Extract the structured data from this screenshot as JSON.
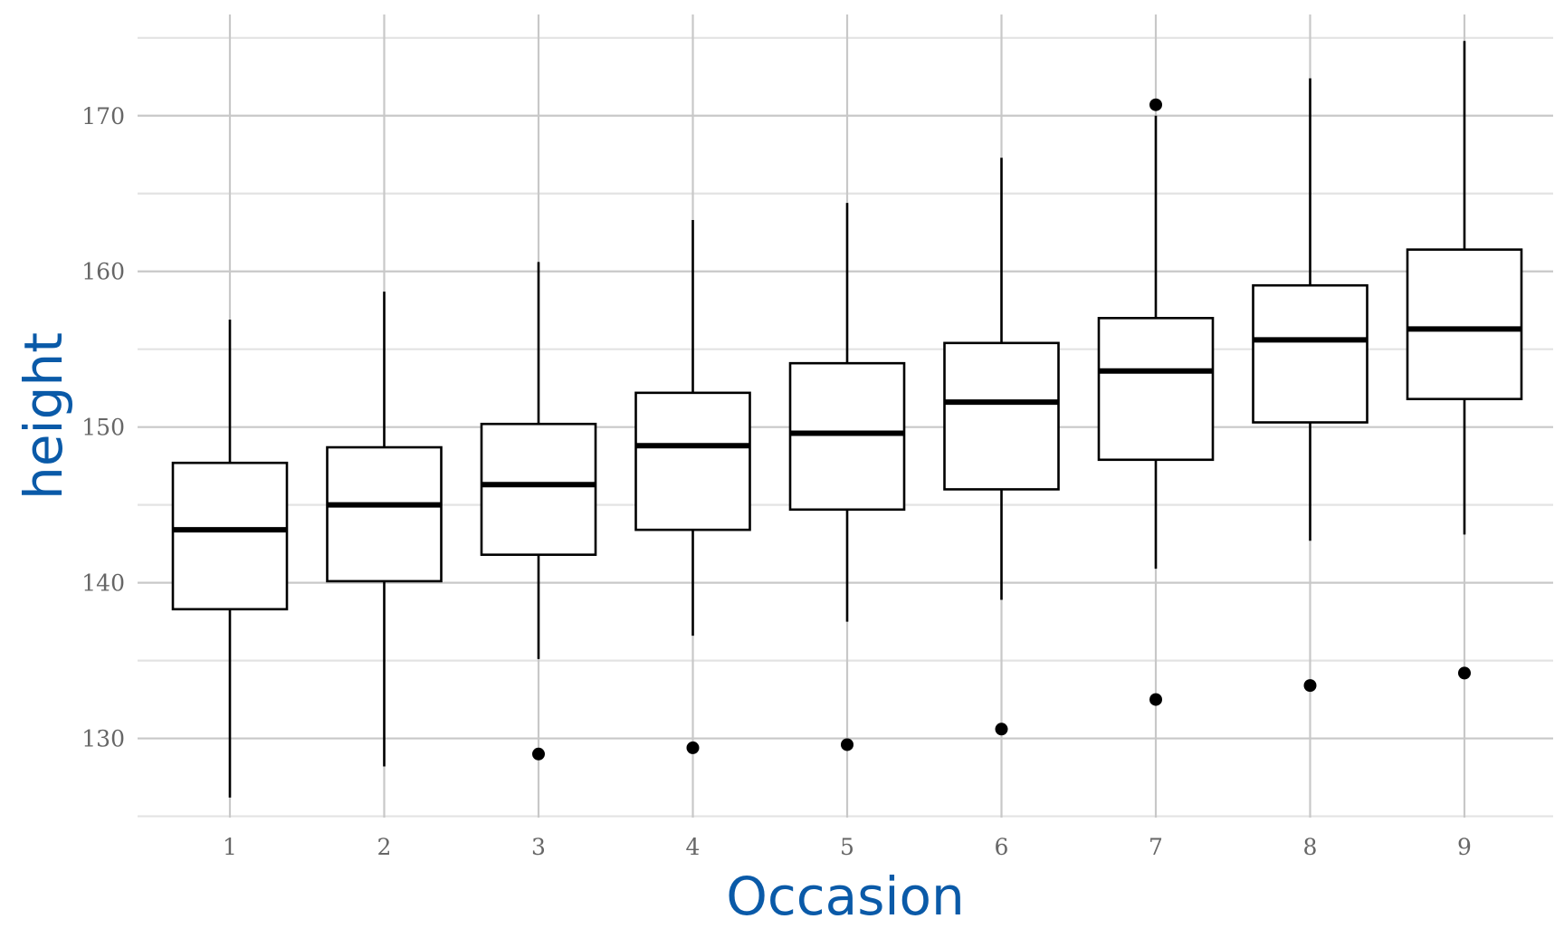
{
  "chart_data": {
    "type": "boxplot",
    "xlabel": "Occasion",
    "ylabel": "height",
    "ylim": [
      124.8,
      176.5
    ],
    "y_ticks": [
      130,
      140,
      150,
      160,
      170
    ],
    "categories": [
      "1",
      "2",
      "3",
      "4",
      "5",
      "6",
      "7",
      "8",
      "9"
    ],
    "boxes": [
      {
        "category": "1",
        "whisker_low": 126.2,
        "q1": 138.3,
        "median": 143.4,
        "q3": 147.7,
        "whisker_high": 156.9,
        "outliers": []
      },
      {
        "category": "2",
        "whisker_low": 128.2,
        "q1": 140.1,
        "median": 145.0,
        "q3": 148.7,
        "whisker_high": 158.7,
        "outliers": []
      },
      {
        "category": "3",
        "whisker_low": 135.1,
        "q1": 141.8,
        "median": 146.3,
        "q3": 150.2,
        "whisker_high": 160.6,
        "outliers": [
          129.0
        ]
      },
      {
        "category": "4",
        "whisker_low": 136.6,
        "q1": 143.4,
        "median": 148.8,
        "q3": 152.2,
        "whisker_high": 163.3,
        "outliers": [
          129.4
        ]
      },
      {
        "category": "5",
        "whisker_low": 137.5,
        "q1": 144.7,
        "median": 149.6,
        "q3": 154.1,
        "whisker_high": 164.4,
        "outliers": [
          129.6
        ]
      },
      {
        "category": "6",
        "whisker_low": 138.9,
        "q1": 146.0,
        "median": 151.6,
        "q3": 155.4,
        "whisker_high": 167.3,
        "outliers": [
          130.6
        ]
      },
      {
        "category": "7",
        "whisker_low": 140.9,
        "q1": 147.9,
        "median": 153.6,
        "q3": 157.0,
        "whisker_high": 170.0,
        "outliers": [
          170.7,
          132.5
        ]
      },
      {
        "category": "8",
        "whisker_low": 142.7,
        "q1": 150.3,
        "median": 155.6,
        "q3": 159.1,
        "whisker_high": 172.4,
        "outliers": [
          133.4
        ]
      },
      {
        "category": "9",
        "whisker_low": 143.1,
        "q1": 151.8,
        "median": 156.3,
        "q3": 161.4,
        "whisker_high": 174.8,
        "outliers": [
          134.2
        ]
      }
    ],
    "grid": true,
    "legend": "none",
    "colors": {
      "box_fill": "#ffffff",
      "box_stroke": "#000000",
      "axis_title": "#0a5aa8",
      "tick_label": "#666666"
    }
  }
}
